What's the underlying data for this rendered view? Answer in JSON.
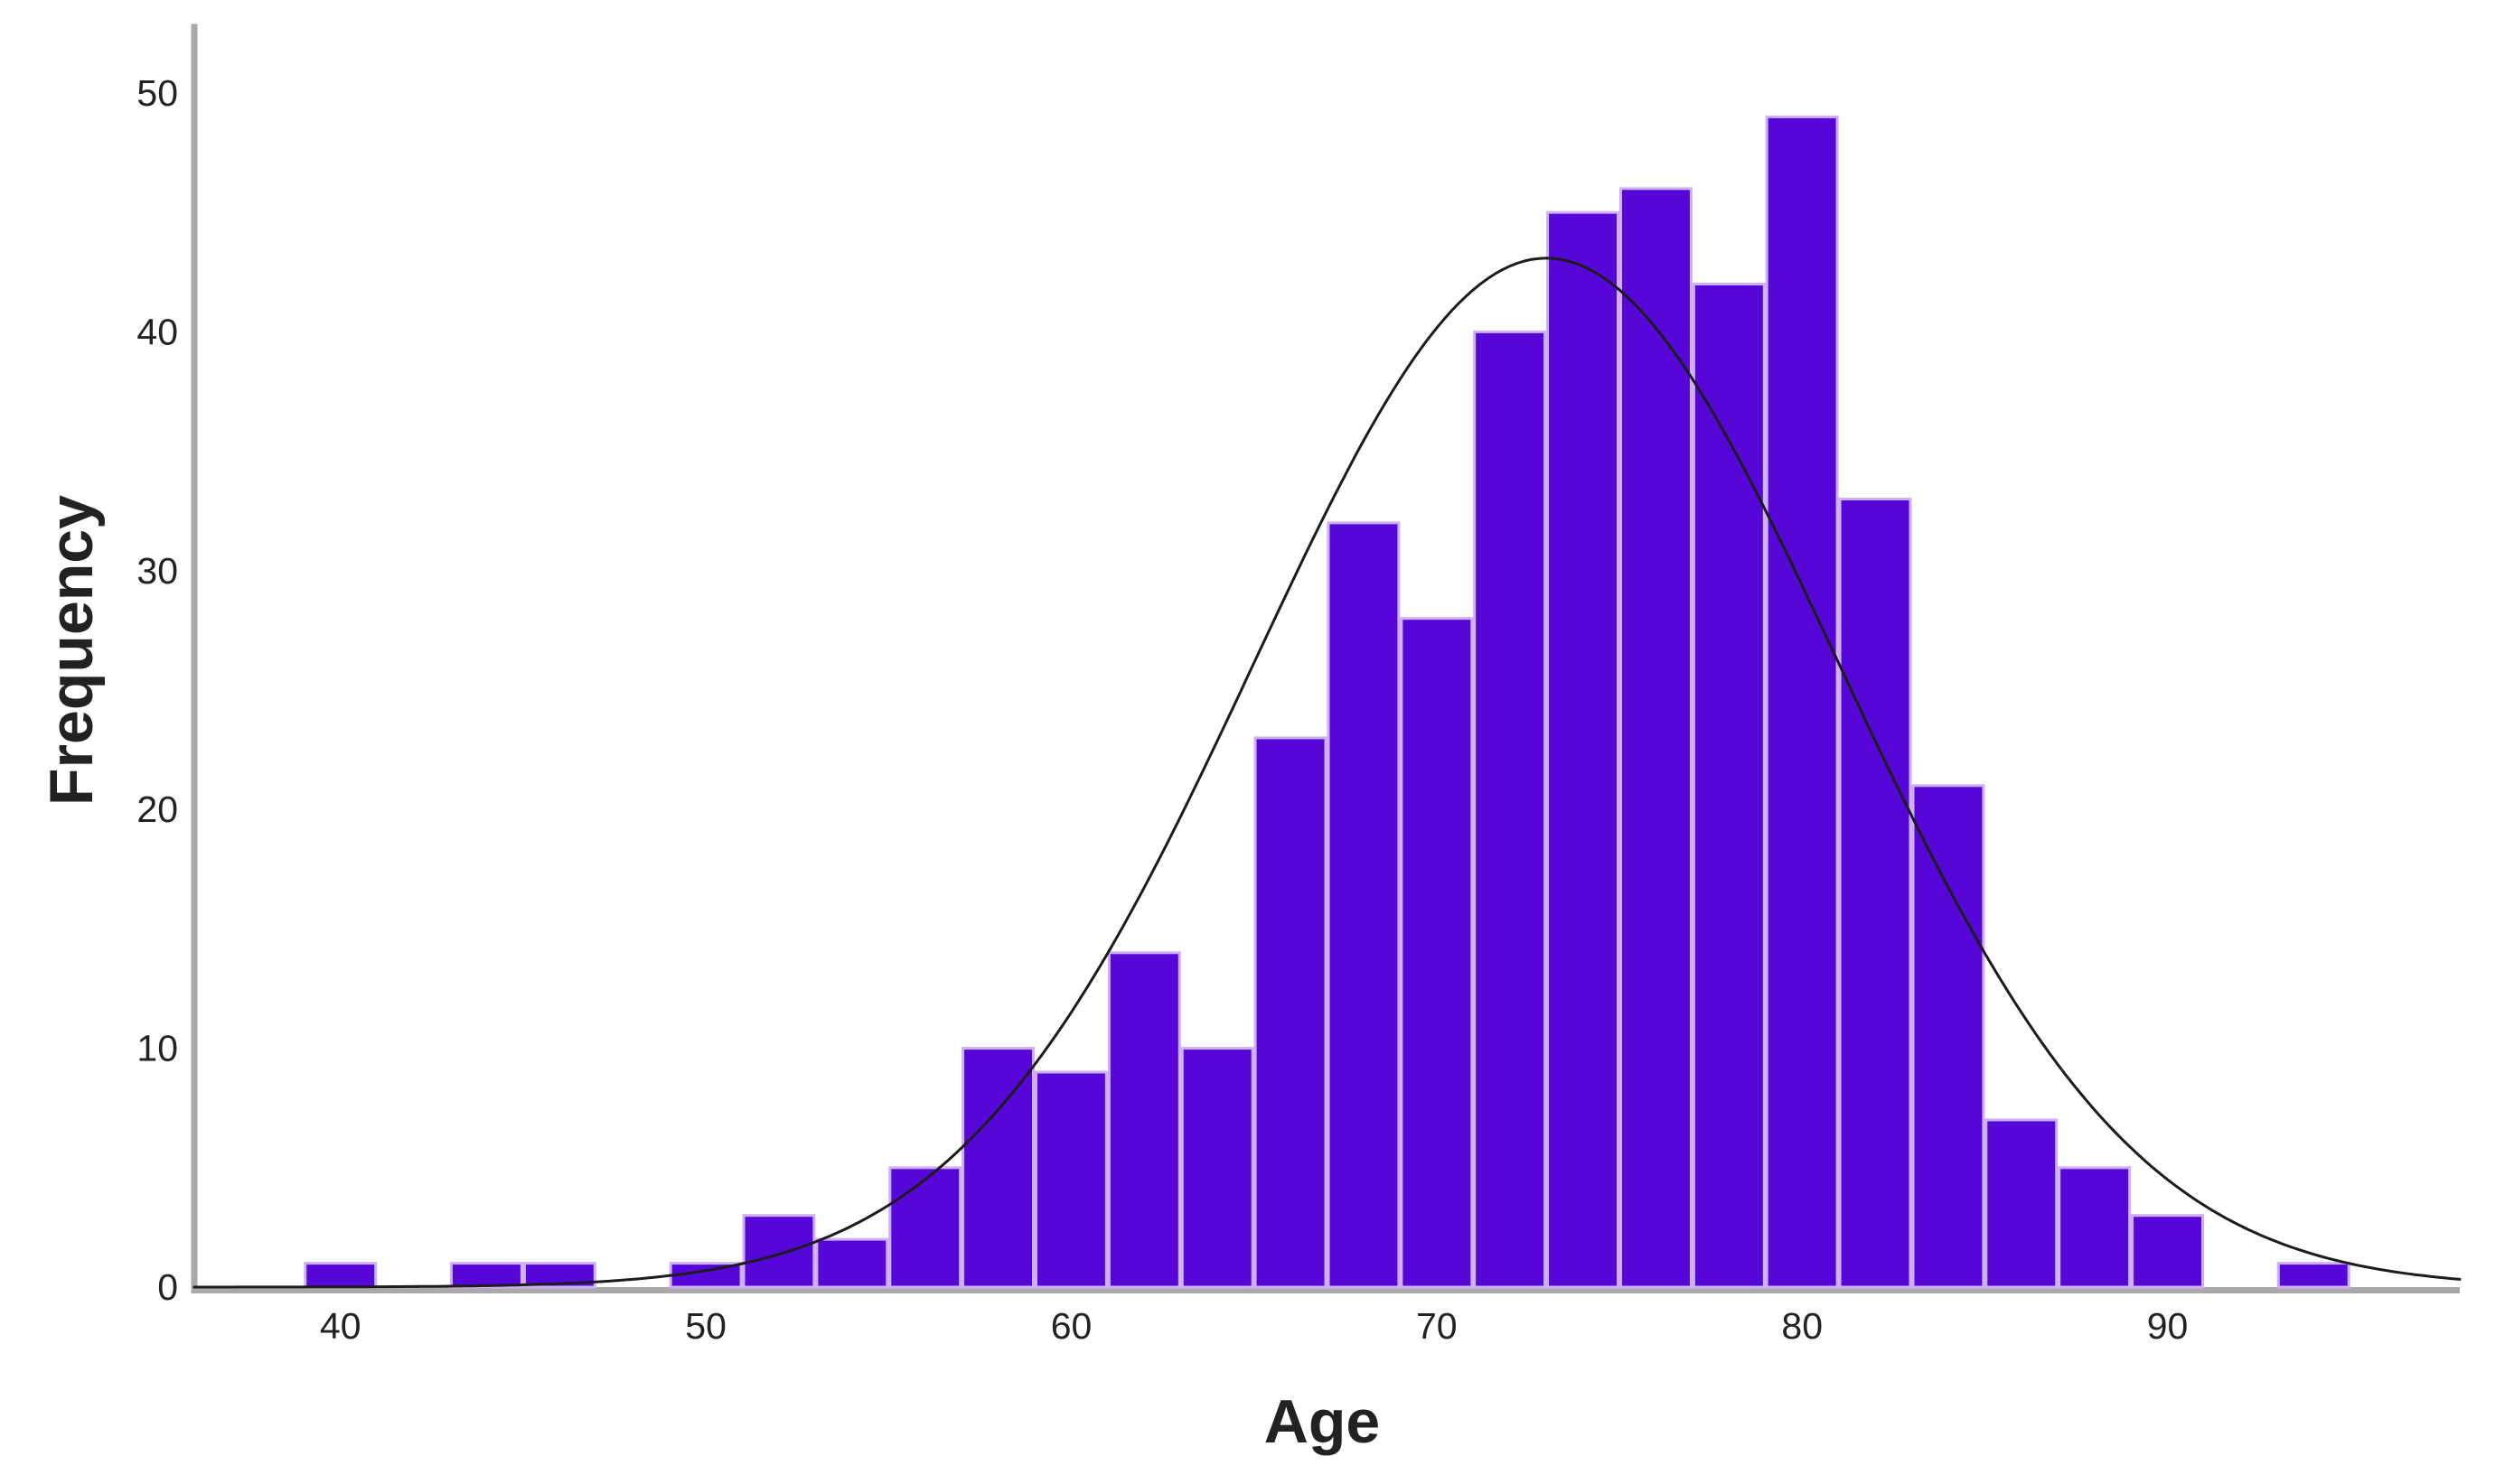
{
  "chart_data": {
    "type": "bar",
    "subtype": "histogram-with-normal-curve",
    "title": "",
    "xlabel": "Age",
    "ylabel": "Frequency",
    "bin_width": 2,
    "bin_centers": [
      40,
      44,
      46,
      50,
      52,
      54,
      56,
      58,
      60,
      62,
      64,
      66,
      68,
      70,
      72,
      74,
      76,
      78,
      80,
      82,
      84,
      86,
      88,
      90,
      94
    ],
    "frequencies": [
      1,
      1,
      1,
      1,
      3,
      2,
      5,
      10,
      9,
      14,
      10,
      23,
      32,
      28,
      40,
      45,
      46,
      42,
      49,
      33,
      21,
      7,
      5,
      3,
      1
    ],
    "x_ticks": [
      40,
      50,
      60,
      70,
      80,
      90
    ],
    "y_ticks": [
      0,
      10,
      20,
      30,
      40,
      50
    ],
    "x_range": [
      36,
      98
    ],
    "y_range": [
      0,
      52.9
    ],
    "grid": false,
    "legend": "none",
    "total_n": 432,
    "normal_curve": {
      "mean": 73,
      "sd": 8,
      "n_total": 432,
      "area_scale": 864,
      "peak_height": 43.1
    }
  },
  "ui": {
    "colors": {
      "bar_fill": "#5606D6",
      "bar_edge": "#CDAFF4",
      "curve": "#1C1C1C",
      "axis_line": "#A9A9A9",
      "text": "#222222",
      "background": "#FFFFFF"
    }
  }
}
